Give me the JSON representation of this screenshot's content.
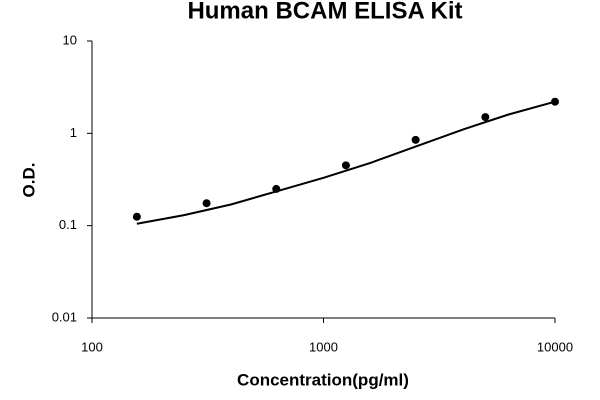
{
  "chart_data": {
    "type": "scatter",
    "title": "Human BCAM ELISA Kit",
    "x_label": "Concentration(pg/ml)",
    "y_label": "O.D.",
    "xscale": "log",
    "yscale": "log",
    "xlim": [
      100,
      10000
    ],
    "xticks": [
      100,
      1000,
      10000
    ],
    "ylim": [
      0.01,
      10
    ],
    "yticks": [
      0.01,
      0.1,
      1,
      10
    ],
    "series": [
      {
        "type": "scatter",
        "color": "#000000",
        "x": [
          156.25,
          312.5,
          625,
          1250,
          2500,
          5000,
          10000
        ],
        "values": [
          0.125,
          0.175,
          0.25,
          0.45,
          0.85,
          1.5,
          2.2
        ]
      },
      {
        "type": "line",
        "color": "#000000",
        "x": [
          156.25,
          250,
          400,
          625,
          1000,
          1600,
          2500,
          4000,
          6300,
          10000
        ],
        "values": [
          0.105,
          0.13,
          0.17,
          0.235,
          0.33,
          0.48,
          0.72,
          1.1,
          1.6,
          2.2
        ]
      }
    ]
  }
}
